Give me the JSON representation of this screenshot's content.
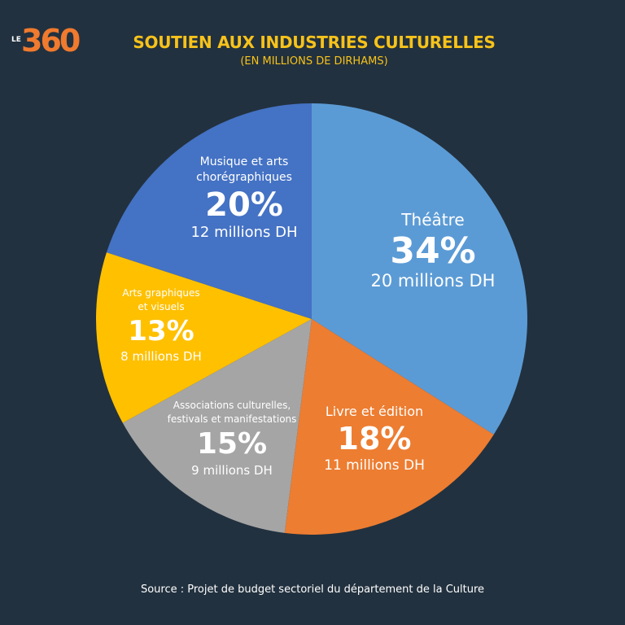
{
  "logo": {
    "le": "LE",
    "num": "360"
  },
  "title": "SOUTIEN AUX INDUSTRIES CULTURELLES",
  "subtitle": "(EN MILLIONS DE DIRHAMS)",
  "source": "Source : Projet de budget sectoriel du département de la Culture",
  "chart_data": {
    "type": "pie",
    "title": "SOUTIEN AUX INDUSTRIES CULTURELLES",
    "subtitle": "(EN MILLIONS DE DIRHAMS)",
    "start_angle": "12 o'clock, clockwise",
    "slices": [
      {
        "label": "Théâtre",
        "percent": 34,
        "pct_label": "34%",
        "value": 20,
        "value_label": "20 millions DH",
        "color": "#5b9bd5"
      },
      {
        "label": "Livre et édition",
        "percent": 18,
        "pct_label": "18%",
        "value": 11,
        "value_label": "11 millions DH",
        "color": "#ed7d31"
      },
      {
        "label": "Associations culturelles, festivals et manifestations",
        "percent": 15,
        "pct_label": "15%",
        "value": 9,
        "value_label": "9 millions DH",
        "color": "#a5a5a5"
      },
      {
        "label": "Arts graphiques et visuels",
        "percent": 13,
        "pct_label": "13%",
        "value": 8,
        "value_label": "8 millions DH",
        "color": "#ffc000"
      },
      {
        "label": "Musique et arts chorégraphiques",
        "percent": 20,
        "pct_label": "20%",
        "value": 12,
        "value_label": "12 millions DH",
        "color": "#4472c4"
      }
    ]
  }
}
